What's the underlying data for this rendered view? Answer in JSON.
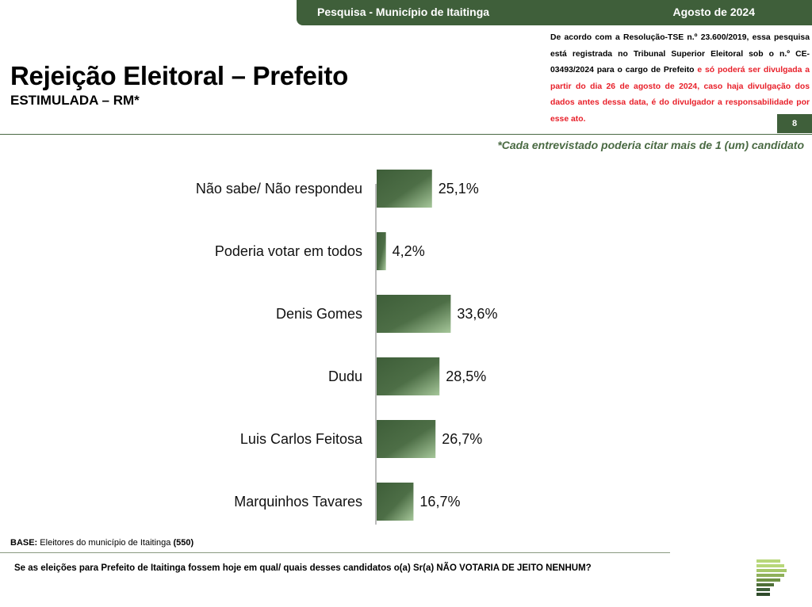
{
  "header": {
    "survey_label": "Pesquisa - Município de Itaitinga",
    "date_label": "Agosto de 2024"
  },
  "title": "Rejeição Eleitoral – Prefeito",
  "subtitle": "ESTIMULADA – RM*",
  "legal": {
    "text_black": "De acordo com a Resolução-TSE n.º 23.600/2019, essa pesquisa está registrada no Tribunal Superior Eleitoral sob o n.º CE-03493/2024 para o cargo de Prefeito",
    "text_red": " e só poderá ser divulgada a partir do dia 26 de agosto de 2024, caso haja divulgação dos dados antes dessa data, é do divulgador a responsabilidade por esse ato."
  },
  "page_number": "8",
  "note": "*Cada entrevistado poderia citar mais de 1 (um) candidato",
  "chart_data": {
    "type": "bar",
    "orientation": "horizontal",
    "categories": [
      "Não sabe/ Não respondeu",
      "Poderia votar em todos",
      "Denis Gomes",
      "Dudu",
      "Luis Carlos Feitosa",
      "Marquinhos Tavares"
    ],
    "values": [
      25.1,
      4.2,
      33.6,
      28.5,
      26.7,
      16.7
    ],
    "value_labels": [
      "25,1%",
      "4,2%",
      "33,6%",
      "28,5%",
      "26,7%",
      "16,7%"
    ],
    "colors": {
      "bar_dark": "#3e5e39",
      "bar_light": "#8fb585"
    },
    "xlim": [
      0,
      100
    ]
  },
  "base": {
    "label": "BASE:",
    "text": " Eleitores do município de Itaitinga ",
    "count": "(550)"
  },
  "question": "Se as eleições para Prefeito de Itaitinga fossem hoje em qual/ quais desses candidatos o(a) Sr(a) NÃO VOTARIA DE JEITO NENHUM?",
  "colors": {
    "brand": "#3f5f3a",
    "legal_red": "#e8202a",
    "logo_light": "#b8d77a"
  },
  "logo_icon": "stacked-bars-logo-icon"
}
